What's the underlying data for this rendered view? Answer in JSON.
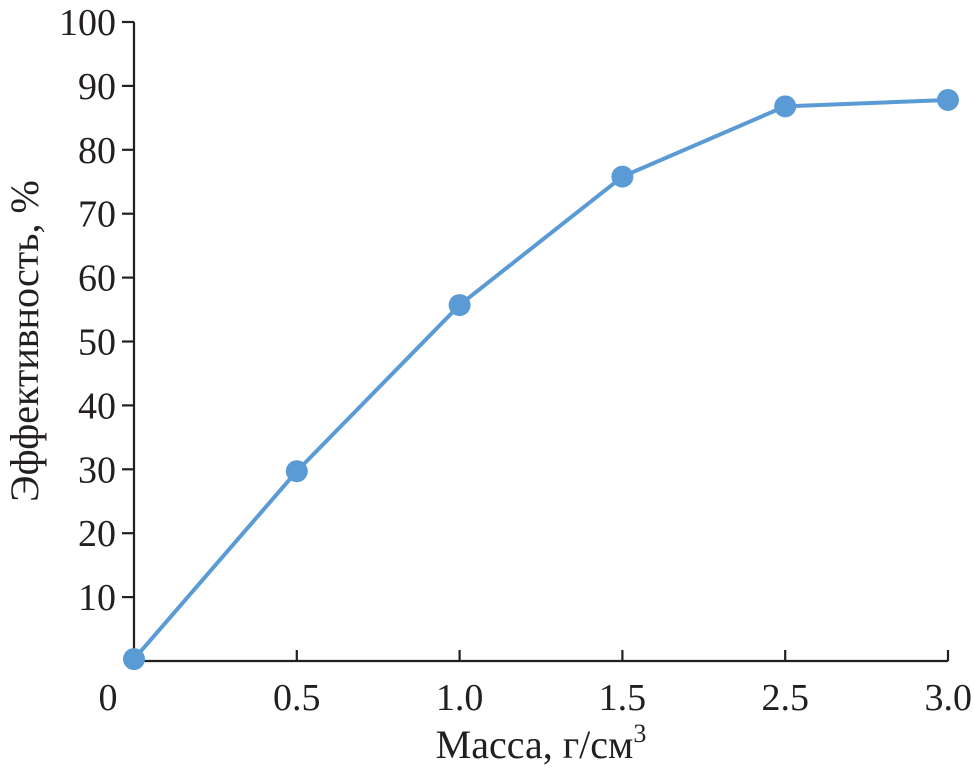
{
  "chart_data": {
    "type": "line",
    "title": "",
    "xlabel": "Масса, г/см",
    "xlabel_superscript": "3",
    "ylabel": "Эффективность, %",
    "categories": [
      "0",
      "0.5",
      "1.0",
      "1.5",
      "2.5",
      "3.0"
    ],
    "x_category_index": [
      0,
      1,
      2,
      3,
      4,
      5
    ],
    "ylim": [
      0,
      100
    ],
    "yticks": [
      10,
      20,
      30,
      40,
      50,
      60,
      70,
      80,
      90,
      100
    ],
    "grid": false,
    "series": [
      {
        "name": "Эффективность",
        "color": "#5b9bd5",
        "values": [
          0.3,
          29.7,
          55.7,
          75.8,
          86.8,
          87.8
        ]
      }
    ]
  }
}
